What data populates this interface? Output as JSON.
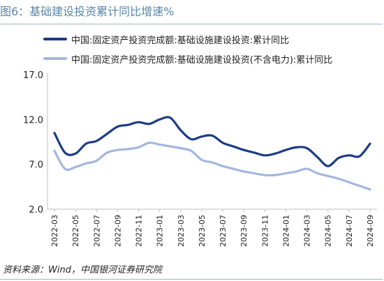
{
  "title": "图6：基础建设投资累计同比增速%",
  "source": "资料来源：Wind，中国银河证券研究院",
  "chart_data": {
    "type": "line",
    "x": [
      "2022-03",
      "2022-04",
      "2022-05",
      "2022-06",
      "2022-07",
      "2022-08",
      "2022-09",
      "2022-10",
      "2022-11",
      "2022-12",
      "2023-01",
      "2023-02",
      "2023-03",
      "2023-04",
      "2023-05",
      "2023-06",
      "2023-07",
      "2023-08",
      "2023-09",
      "2023-10",
      "2023-11",
      "2023-12",
      "2024-01",
      "2024-02",
      "2024-03",
      "2024-04",
      "2024-05",
      "2024-06",
      "2024-07",
      "2024-08",
      "2024-09"
    ],
    "xticks": [
      "2022-03",
      "2022-05",
      "2022-07",
      "2022-09",
      "2022-11",
      "2023-01",
      "2023-03",
      "2023-05",
      "2023-07",
      "2023-09",
      "2023-11",
      "2024-01",
      "2024-03",
      "2024-05",
      "2024-07",
      "2024-09"
    ],
    "yticks": [
      "2.0",
      "7.0",
      "12.0",
      "17.0"
    ],
    "ylim": [
      2.0,
      17.0
    ],
    "series": [
      {
        "name": "中国:固定资产投资完成额:基础设施建设投资:累计同比",
        "color": "#1c3c84",
        "values": [
          10.5,
          8.3,
          8.2,
          9.3,
          9.6,
          10.4,
          11.2,
          11.4,
          11.7,
          11.5,
          12.0,
          12.2,
          10.8,
          9.8,
          10.1,
          10.2,
          9.4,
          9.0,
          8.6,
          8.3,
          8.0,
          8.2,
          8.6,
          8.9,
          8.8,
          7.8,
          6.8,
          7.7,
          8.0,
          7.9,
          9.3
        ]
      },
      {
        "name": "中国:固定资产投资完成额:基础设施建设投资(不含电力):累计同比",
        "color": "#a3b6e0",
        "values": [
          8.5,
          6.5,
          6.7,
          7.1,
          7.4,
          8.3,
          8.6,
          8.7,
          8.9,
          9.4,
          9.2,
          9.0,
          8.8,
          8.5,
          7.5,
          7.2,
          6.8,
          6.5,
          6.2,
          6.0,
          5.8,
          5.8,
          6.0,
          6.2,
          6.5,
          6.0,
          5.7,
          5.4,
          5.0,
          4.6,
          4.2
        ]
      }
    ]
  }
}
